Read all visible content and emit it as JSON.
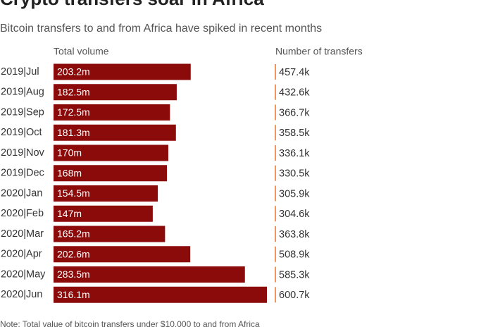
{
  "chart_data": {
    "type": "bar",
    "title": "Crypto transfers soar in Africa",
    "subtitle": "Bitcoin transfers to and from Africa have spiked in recent months",
    "categories": [
      "2019|Jul",
      "2019|Aug",
      "2019|Sep",
      "2019|Oct",
      "2019|Nov",
      "2019|Dec",
      "2020|Jan",
      "2020|Feb",
      "2020|Mar",
      "2020|Apr",
      "2020|May",
      "2020|Jun"
    ],
    "series": [
      {
        "name": "Total volume",
        "color": "#8b0a0a",
        "values": [
          203.2,
          182.5,
          172.5,
          181.3,
          170,
          168,
          154.5,
          147,
          165.2,
          202.6,
          283.5,
          316.1
        ],
        "value_labels": [
          "203.2m",
          "182.5m",
          "172.5m",
          "181.3m",
          "170m",
          "168m",
          "154.5m",
          "147m",
          "165.2m",
          "202.6m",
          "283.5m",
          "316.1m"
        ]
      },
      {
        "name": "Number of transfers",
        "color": "#e8732c",
        "values": [
          457.4,
          432.6,
          366.7,
          358.5,
          336.1,
          330.5,
          305.9,
          304.6,
          363.8,
          508.9,
          585.3,
          600.7
        ],
        "value_labels": [
          "457.4k",
          "432.6k",
          "366.7k",
          "358.5k",
          "336.1k",
          "330.5k",
          "305.9k",
          "304.6k",
          "363.8k",
          "508.9k",
          "585.3k",
          "600.7k"
        ]
      }
    ],
    "note": "Note: Total value of bitcoin transfers under $10,000 to and from Africa"
  }
}
